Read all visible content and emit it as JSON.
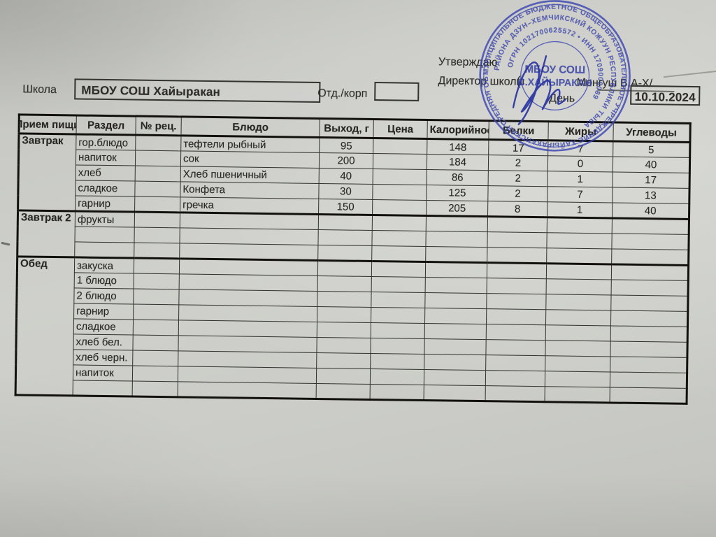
{
  "approval": {
    "approve_label": "Утверждаю",
    "director_label": "Директор школы",
    "paren": "(",
    "director_name": "Монгуш В.А-Х/"
  },
  "form": {
    "school_label": "Школа",
    "school_value": "МБОУ СОШ Хайыракан",
    "dept_label": "Отд./корп",
    "dept_value": "",
    "day_label": "День",
    "day_value": "10.10.2024"
  },
  "stamp": {
    "center_line1": "МБОУ СОШ",
    "center_line2": "С.ХАЙЫРАКАН",
    "outer_ring": "МУНИЦИПАЛЬНОЕ БЮДЖЕТНОЕ ОБЩЕОБРАЗОВАТЕЛЬНОЕ УЧРЕЖДЕНИЕ ХАЙЫРАКАНСКАЯ СРЕДНЯЯ ОБЩЕОБРАЗОВАТЕЛЬНАЯ ШКОЛА",
    "middle_ring": "РАЙОНА ДЗУН–ХЕМЧИКСКИЙ КОЖУУН РЕСПУБЛИКИ ТЫВА",
    "inner_ring": "ОГРН 1021700625572 • ИНН 1709000089",
    "ink_color": "#3d47b2"
  },
  "table": {
    "columns": [
      "Прием пищи",
      "Раздел",
      "№ рец.",
      "Блюдо",
      "Выход, г",
      "Цена",
      "Калорийность",
      "Белки",
      "Жиры",
      "Углеводы"
    ],
    "sections": [
      {
        "meal": "Завтрак",
        "rows": [
          [
            "гор.блюдо",
            "",
            "тефтели рыбный",
            "95",
            "",
            "148",
            "17",
            "7",
            "5"
          ],
          [
            "напиток",
            "",
            "сок",
            "200",
            "",
            "184",
            "2",
            "0",
            "40"
          ],
          [
            "хлеб",
            "",
            "Хлеб пшеничный",
            "40",
            "",
            "86",
            "2",
            "1",
            "17"
          ],
          [
            "сладкое",
            "",
            "Конфета",
            "30",
            "",
            "125",
            "2",
            "7",
            "13"
          ],
          [
            "гарнир",
            "",
            "гречка",
            "150",
            "",
            "205",
            "8",
            "1",
            "40"
          ]
        ]
      },
      {
        "meal": "Завтрак 2",
        "rows": [
          [
            "фрукты",
            "",
            "",
            "",
            "",
            "",
            "",
            "",
            ""
          ],
          [
            "",
            "",
            "",
            "",
            "",
            "",
            "",
            "",
            ""
          ],
          [
            "",
            "",
            "",
            "",
            "",
            "",
            "",
            "",
            ""
          ]
        ]
      },
      {
        "meal": "Обед",
        "rows": [
          [
            "закуска",
            "",
            "",
            "",
            "",
            "",
            "",
            "",
            ""
          ],
          [
            "1 блюдо",
            "",
            "",
            "",
            "",
            "",
            "",
            "",
            ""
          ],
          [
            "2 блюдо",
            "",
            "",
            "",
            "",
            "",
            "",
            "",
            ""
          ],
          [
            "гарнир",
            "",
            "",
            "",
            "",
            "",
            "",
            "",
            ""
          ],
          [
            "сладкое",
            "",
            "",
            "",
            "",
            "",
            "",
            "",
            ""
          ],
          [
            "хлеб бел.",
            "",
            "",
            "",
            "",
            "",
            "",
            "",
            ""
          ],
          [
            "хлеб черн.",
            "",
            "",
            "",
            "",
            "",
            "",
            "",
            ""
          ],
          [
            "напиток",
            "",
            "",
            "",
            "",
            "",
            "",
            "",
            ""
          ],
          [
            "",
            "",
            "",
            "",
            "",
            "",
            "",
            "",
            ""
          ]
        ]
      }
    ]
  },
  "colors": {
    "paper": "#cbccc7",
    "table_line": "#31302b",
    "stamp_ink": "#3d47b2"
  }
}
